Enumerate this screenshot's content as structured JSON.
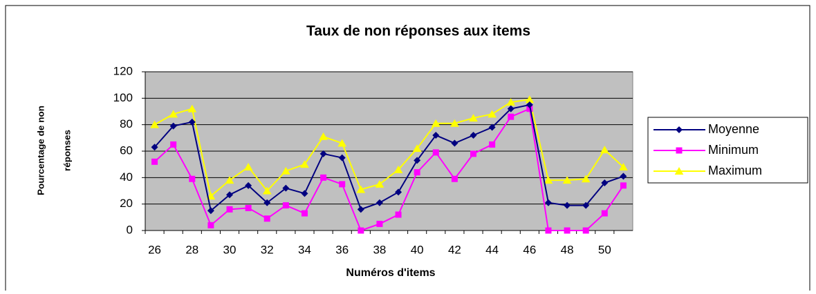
{
  "chart_data": {
    "type": "line",
    "title": "Taux de non réponses aux items",
    "x_label": "Numéros d'items",
    "y_label": [
      "Pourcentage de non",
      "réponses"
    ],
    "categories": [
      "26",
      null,
      "28",
      null,
      "30",
      null,
      "32",
      null,
      "34",
      null,
      "36",
      null,
      "38",
      null,
      "40",
      null,
      "42",
      null,
      "44",
      null,
      "46",
      null,
      "48",
      null,
      "50",
      null
    ],
    "series": [
      {
        "name": "Moyenne",
        "color": "#000080",
        "marker": "diamond",
        "values": [
          63,
          79,
          82,
          15,
          27,
          34,
          21,
          32,
          28,
          58,
          55,
          16,
          21,
          29,
          53,
          72,
          66,
          72,
          78,
          92,
          95,
          21,
          19,
          19,
          36,
          41
        ]
      },
      {
        "name": "Minimum",
        "color": "#ff00ff",
        "marker": "square",
        "values": [
          52,
          65,
          39,
          4,
          16,
          17,
          9,
          19,
          13,
          40,
          35,
          0,
          5,
          12,
          44,
          59,
          39,
          58,
          65,
          86,
          92,
          0,
          0,
          0,
          13,
          34
        ]
      },
      {
        "name": "Maximum",
        "color": "#ffff00",
        "marker": "triangle",
        "values": [
          80,
          88,
          92,
          26,
          38,
          48,
          30,
          45,
          50,
          71,
          66,
          31,
          35,
          46,
          62,
          81,
          81,
          85,
          88,
          97,
          99,
          38,
          38,
          39,
          61,
          48
        ]
      }
    ],
    "ylim": [
      0,
      120
    ],
    "yticks": [
      0,
      20,
      40,
      60,
      80,
      100,
      120
    ],
    "grid": true,
    "plot_background": "#c0c0c0",
    "legend": "right"
  }
}
